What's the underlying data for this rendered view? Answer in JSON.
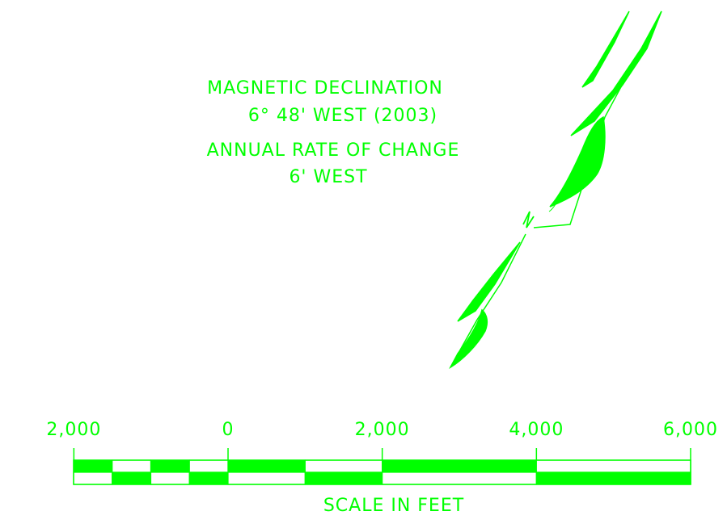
{
  "colors": {
    "line": "#00ff00",
    "background": "#ffffff"
  },
  "declination": {
    "line1": "MAGNETIC DECLINATION",
    "line2": "6° 48' WEST (2003)",
    "line3": "ANNUAL RATE OF CHANGE",
    "line4": "6' WEST"
  },
  "north_arrow": {
    "label": "N",
    "icon": "north-arrow-icon"
  },
  "scale_bar": {
    "units": "feet",
    "title": "SCALE IN FEET",
    "ticks": [
      {
        "value": -2000,
        "label": "2,000"
      },
      {
        "value": 0,
        "label": "0"
      },
      {
        "value": 2000,
        "label": "2,000"
      },
      {
        "value": 4000,
        "label": "4,000"
      },
      {
        "value": 6000,
        "label": "6,000"
      }
    ],
    "left_subdivisions": 4,
    "right_segments": [
      0,
      1000,
      2000,
      4000,
      6000
    ]
  }
}
